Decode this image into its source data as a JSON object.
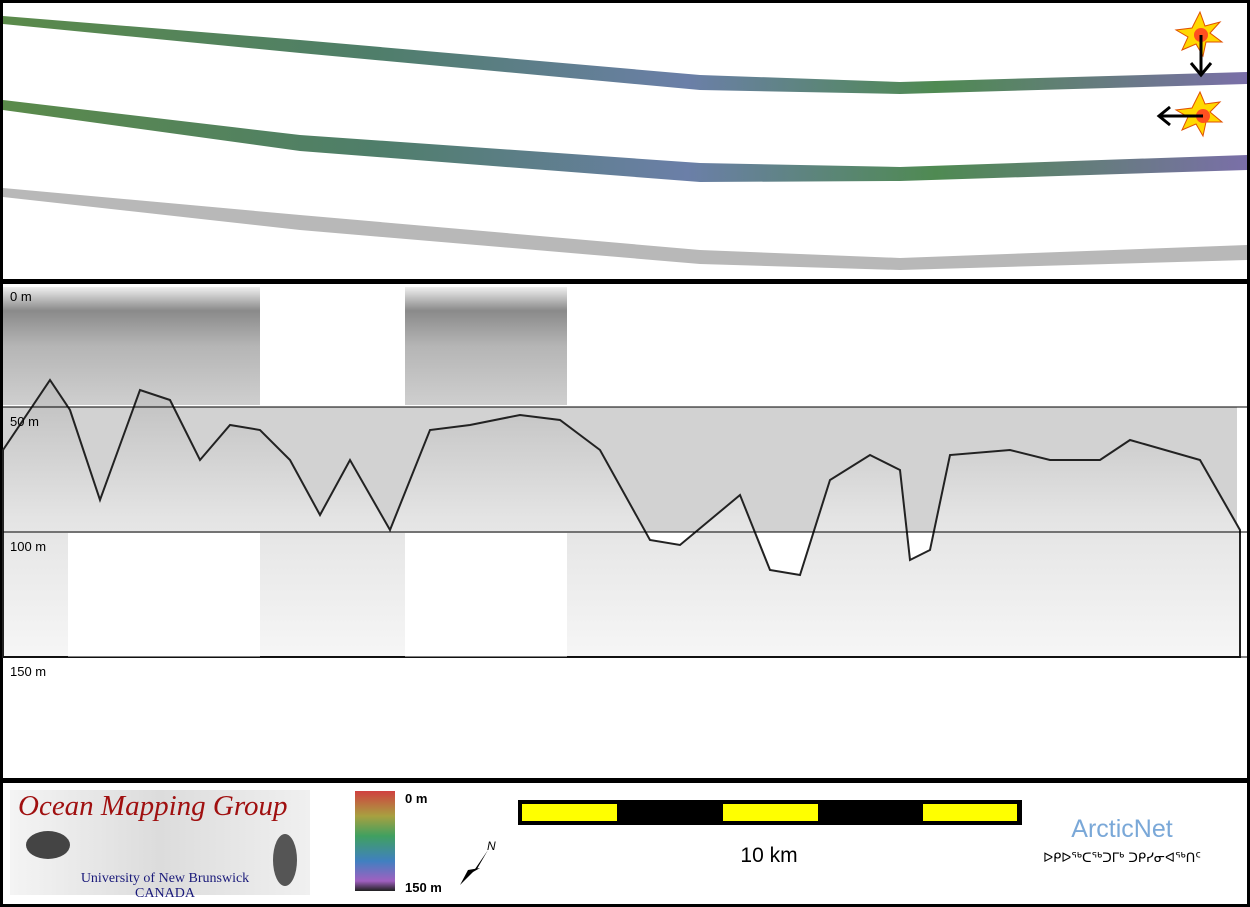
{
  "profile": {
    "depth_labels": [
      "0 m",
      "50 m",
      "100 m",
      "150 m"
    ]
  },
  "footer": {
    "logo_title": "Ocean Mapping Group",
    "logo_line1": "University of New Brunswick",
    "logo_line2": "CANADA",
    "colorbar_top": "0 m",
    "colorbar_bottom": "150 m",
    "scale_label": "10 km",
    "partner": "ArcticNet",
    "partner_syllabics": "ᐅᑭᐅᖅᑕᖅᑐᒥᒃ ᑐᑭᓯᓂᐊᖅᑎᑦ"
  }
}
